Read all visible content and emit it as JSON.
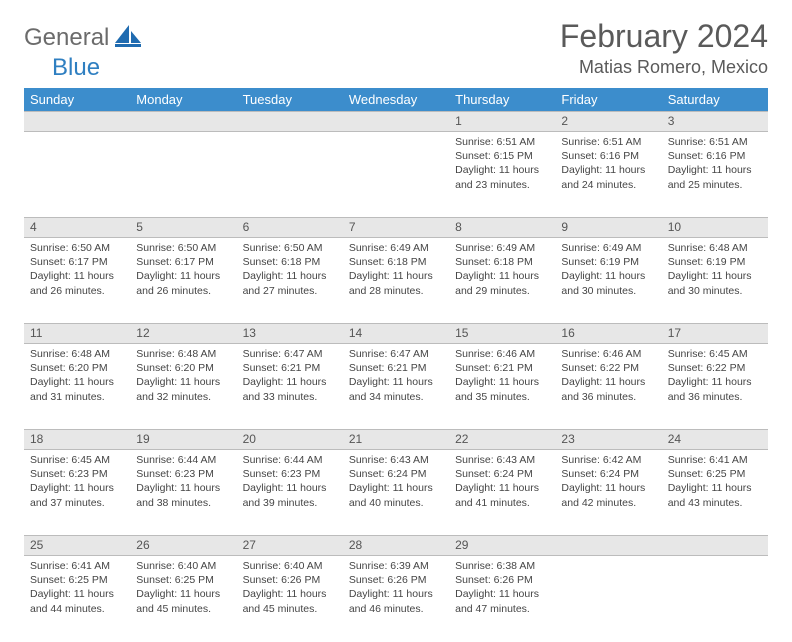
{
  "logo": {
    "general": "General",
    "blue": "Blue"
  },
  "title": "February 2024",
  "location": "Matias Romero, Mexico",
  "header_color": "#3c8dcc",
  "daybar_color": "#e7e7e7",
  "day_names": [
    "Sunday",
    "Monday",
    "Tuesday",
    "Wednesday",
    "Thursday",
    "Friday",
    "Saturday"
  ],
  "weeks": [
    [
      null,
      null,
      null,
      null,
      {
        "n": "1",
        "sr": "6:51 AM",
        "ss": "6:15 PM",
        "dl": "11 hours and 23 minutes."
      },
      {
        "n": "2",
        "sr": "6:51 AM",
        "ss": "6:16 PM",
        "dl": "11 hours and 24 minutes."
      },
      {
        "n": "3",
        "sr": "6:51 AM",
        "ss": "6:16 PM",
        "dl": "11 hours and 25 minutes."
      }
    ],
    [
      {
        "n": "4",
        "sr": "6:50 AM",
        "ss": "6:17 PM",
        "dl": "11 hours and 26 minutes."
      },
      {
        "n": "5",
        "sr": "6:50 AM",
        "ss": "6:17 PM",
        "dl": "11 hours and 26 minutes."
      },
      {
        "n": "6",
        "sr": "6:50 AM",
        "ss": "6:18 PM",
        "dl": "11 hours and 27 minutes."
      },
      {
        "n": "7",
        "sr": "6:49 AM",
        "ss": "6:18 PM",
        "dl": "11 hours and 28 minutes."
      },
      {
        "n": "8",
        "sr": "6:49 AM",
        "ss": "6:18 PM",
        "dl": "11 hours and 29 minutes."
      },
      {
        "n": "9",
        "sr": "6:49 AM",
        "ss": "6:19 PM",
        "dl": "11 hours and 30 minutes."
      },
      {
        "n": "10",
        "sr": "6:48 AM",
        "ss": "6:19 PM",
        "dl": "11 hours and 30 minutes."
      }
    ],
    [
      {
        "n": "11",
        "sr": "6:48 AM",
        "ss": "6:20 PM",
        "dl": "11 hours and 31 minutes."
      },
      {
        "n": "12",
        "sr": "6:48 AM",
        "ss": "6:20 PM",
        "dl": "11 hours and 32 minutes."
      },
      {
        "n": "13",
        "sr": "6:47 AM",
        "ss": "6:21 PM",
        "dl": "11 hours and 33 minutes."
      },
      {
        "n": "14",
        "sr": "6:47 AM",
        "ss": "6:21 PM",
        "dl": "11 hours and 34 minutes."
      },
      {
        "n": "15",
        "sr": "6:46 AM",
        "ss": "6:21 PM",
        "dl": "11 hours and 35 minutes."
      },
      {
        "n": "16",
        "sr": "6:46 AM",
        "ss": "6:22 PM",
        "dl": "11 hours and 36 minutes."
      },
      {
        "n": "17",
        "sr": "6:45 AM",
        "ss": "6:22 PM",
        "dl": "11 hours and 36 minutes."
      }
    ],
    [
      {
        "n": "18",
        "sr": "6:45 AM",
        "ss": "6:23 PM",
        "dl": "11 hours and 37 minutes."
      },
      {
        "n": "19",
        "sr": "6:44 AM",
        "ss": "6:23 PM",
        "dl": "11 hours and 38 minutes."
      },
      {
        "n": "20",
        "sr": "6:44 AM",
        "ss": "6:23 PM",
        "dl": "11 hours and 39 minutes."
      },
      {
        "n": "21",
        "sr": "6:43 AM",
        "ss": "6:24 PM",
        "dl": "11 hours and 40 minutes."
      },
      {
        "n": "22",
        "sr": "6:43 AM",
        "ss": "6:24 PM",
        "dl": "11 hours and 41 minutes."
      },
      {
        "n": "23",
        "sr": "6:42 AM",
        "ss": "6:24 PM",
        "dl": "11 hours and 42 minutes."
      },
      {
        "n": "24",
        "sr": "6:41 AM",
        "ss": "6:25 PM",
        "dl": "11 hours and 43 minutes."
      }
    ],
    [
      {
        "n": "25",
        "sr": "6:41 AM",
        "ss": "6:25 PM",
        "dl": "11 hours and 44 minutes."
      },
      {
        "n": "26",
        "sr": "6:40 AM",
        "ss": "6:25 PM",
        "dl": "11 hours and 45 minutes."
      },
      {
        "n": "27",
        "sr": "6:40 AM",
        "ss": "6:26 PM",
        "dl": "11 hours and 45 minutes."
      },
      {
        "n": "28",
        "sr": "6:39 AM",
        "ss": "6:26 PM",
        "dl": "11 hours and 46 minutes."
      },
      {
        "n": "29",
        "sr": "6:38 AM",
        "ss": "6:26 PM",
        "dl": "11 hours and 47 minutes."
      },
      null,
      null
    ]
  ],
  "labels": {
    "sunrise": "Sunrise:",
    "sunset": "Sunset:",
    "daylight": "Daylight:"
  }
}
